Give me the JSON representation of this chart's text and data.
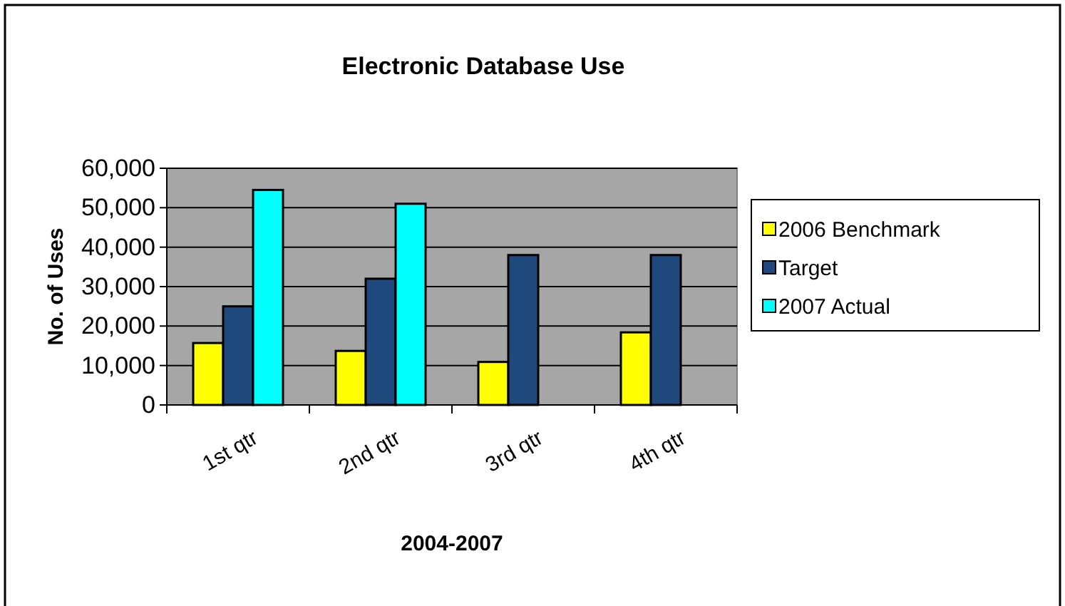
{
  "chart_data": {
    "type": "bar",
    "title": "Electronic Database Use",
    "xlabel": "2004-2007",
    "ylabel": "No. of Uses",
    "categories": [
      "1st qtr",
      "2nd qtr",
      "3rd qtr",
      "4th qtr"
    ],
    "series": [
      {
        "name": "2006 Benchmark",
        "color": "#ffff00",
        "values": [
          15700,
          13700,
          10900,
          18400
        ]
      },
      {
        "name": "Target",
        "color": "#1f497d",
        "values": [
          25000,
          32000,
          38000,
          38000
        ]
      },
      {
        "name": "2007 Actual",
        "color": "#00ffff",
        "values": [
          54500,
          51000,
          null,
          null
        ]
      }
    ],
    "ylim": [
      0,
      60000
    ],
    "yticks": [
      {
        "value": 0,
        "label": "0"
      },
      {
        "value": 10000,
        "label": "10,000"
      },
      {
        "value": 20000,
        "label": "20,000"
      },
      {
        "value": 30000,
        "label": "30,000"
      },
      {
        "value": 40000,
        "label": "40,000"
      },
      {
        "value": 50000,
        "label": "50,000"
      },
      {
        "value": 60000,
        "label": "60,000"
      }
    ],
    "grid": "y",
    "legend": "right"
  }
}
